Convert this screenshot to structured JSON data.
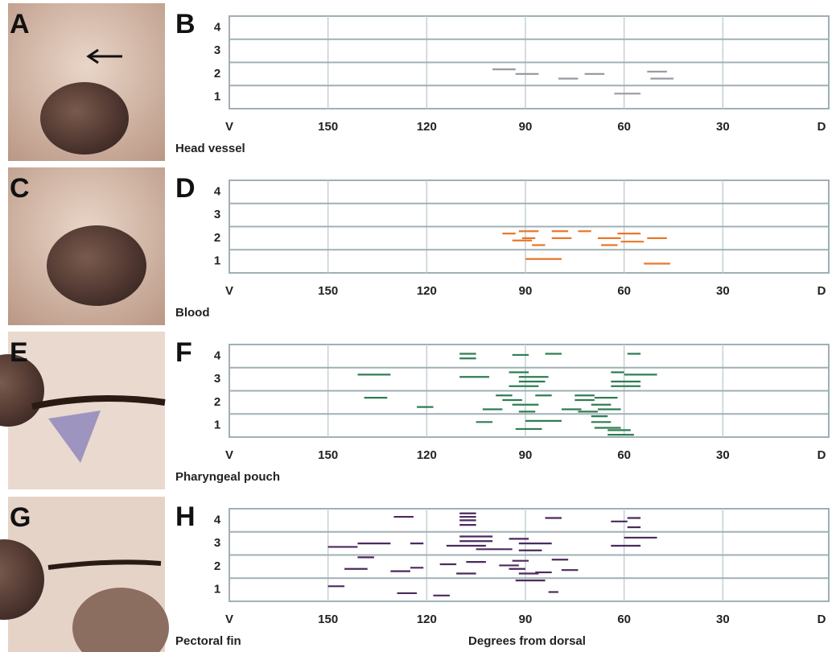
{
  "chart_data": [
    {
      "type": "segment",
      "photo_label": "A",
      "panel": "B",
      "title": "Head vessel",
      "color": "#9a9aa2",
      "x_start": [
        100,
        93,
        80,
        72,
        53,
        52,
        63
      ],
      "x_end": [
        93,
        86,
        74,
        66,
        47,
        45,
        55
      ],
      "values": [
        2.2,
        2.0,
        1.8,
        2.0,
        2.1,
        1.8,
        1.15
      ],
      "xlim": [
        180,
        0
      ],
      "xticks": [
        {
          "value": 180,
          "label": "V"
        },
        150,
        120,
        90,
        60,
        30,
        {
          "value": 0,
          "label": "D"
        }
      ],
      "ylim": [
        0.5,
        4.5
      ],
      "yticks": [
        1,
        2,
        3,
        4
      ]
    },
    {
      "type": "segment",
      "photo_label": "C",
      "panel": "D",
      "title": "Blood",
      "color": "#e8782a",
      "x_start": [
        92,
        97,
        91,
        94,
        88,
        82,
        82,
        74,
        68,
        67,
        62,
        61,
        53,
        90,
        54
      ],
      "x_end": [
        86,
        93,
        87,
        88,
        84,
        77,
        76,
        70,
        61,
        62,
        55,
        54,
        47,
        79,
        46
      ],
      "values": [
        2.3,
        2.2,
        2.0,
        1.9,
        1.7,
        2.3,
        2.0,
        2.3,
        2.0,
        1.7,
        2.2,
        1.85,
        2.0,
        1.1,
        0.9
      ],
      "xlim": [
        180,
        0
      ],
      "xticks": [
        {
          "value": 180,
          "label": "V"
        },
        150,
        120,
        90,
        60,
        30,
        {
          "value": 0,
          "label": "D"
        }
      ],
      "ylim": [
        0.5,
        4.5
      ],
      "yticks": [
        1,
        2,
        3,
        4
      ]
    },
    {
      "type": "segment",
      "photo_label": "E",
      "panel": "F",
      "title": "Pharyngeal pouch",
      "color": "#2f7d52",
      "x_start": [
        110,
        110,
        94,
        84,
        59,
        141,
        110,
        95,
        92,
        92,
        95,
        64,
        60,
        64,
        64,
        139,
        123,
        99,
        97,
        103,
        94,
        87,
        92,
        75,
        75,
        79,
        69,
        70,
        68,
        74,
        105,
        90,
        93,
        70,
        70,
        69,
        65,
        65
      ],
      "x_end": [
        105,
        105,
        89,
        79,
        55,
        131,
        101,
        89,
        83,
        84,
        86,
        60,
        50,
        55,
        55,
        132,
        118,
        94,
        91,
        97,
        86,
        82,
        87,
        69,
        69,
        73,
        62,
        64,
        61,
        68,
        100,
        79,
        85,
        65,
        64,
        61,
        58,
        57
      ],
      "values": [
        4.1,
        3.9,
        4.05,
        4.1,
        4.1,
        3.2,
        3.1,
        3.3,
        3.1,
        2.9,
        2.7,
        3.3,
        3.2,
        2.9,
        2.7,
        2.2,
        1.8,
        2.3,
        2.1,
        1.7,
        1.9,
        2.3,
        1.6,
        2.3,
        2.1,
        1.7,
        2.2,
        1.9,
        1.7,
        1.6,
        1.15,
        1.2,
        0.85,
        1.4,
        1.15,
        0.9,
        0.8,
        0.6
      ],
      "xlim": [
        180,
        0
      ],
      "xticks": [
        {
          "value": 180,
          "label": "V"
        },
        150,
        120,
        90,
        60,
        30,
        {
          "value": 0,
          "label": "D"
        }
      ],
      "ylim": [
        0.5,
        4.5
      ],
      "yticks": [
        1,
        2,
        3,
        4
      ]
    },
    {
      "type": "segment",
      "photo_label": "G",
      "panel": "H",
      "title": "Pectoral fin",
      "x_label": "Degrees from dorsal",
      "color": "#4b2a5e",
      "x_start": [
        130,
        110,
        110,
        110,
        110,
        84,
        64,
        59,
        59,
        110,
        110,
        95,
        141,
        150,
        125,
        114,
        92,
        105,
        92,
        60,
        64,
        141,
        145,
        131,
        125,
        116,
        108,
        111,
        94,
        98,
        95,
        92,
        87,
        82,
        79,
        150,
        93,
        129,
        118,
        83
      ],
      "x_end": [
        124,
        105,
        105,
        105,
        105,
        79,
        59,
        55,
        55,
        100,
        100,
        89,
        131,
        141,
        121,
        102,
        82,
        94,
        85,
        50,
        55,
        136,
        138,
        125,
        121,
        111,
        102,
        105,
        89,
        92,
        90,
        86,
        82,
        77,
        74,
        145,
        84,
        123,
        113,
        80
      ],
      "values": [
        4.15,
        4.3,
        4.15,
        4.0,
        3.8,
        4.1,
        3.95,
        4.1,
        3.7,
        3.3,
        3.1,
        3.2,
        3.0,
        2.85,
        3.0,
        2.9,
        3.0,
        2.75,
        2.7,
        3.25,
        2.9,
        2.4,
        1.9,
        1.8,
        1.95,
        2.1,
        2.2,
        1.7,
        2.25,
        2.05,
        1.9,
        1.7,
        1.75,
        2.3,
        1.85,
        1.15,
        1.4,
        0.85,
        0.75,
        0.9
      ],
      "xlim": [
        180,
        0
      ],
      "xticks": [
        {
          "value": 180,
          "label": "V"
        },
        150,
        120,
        90,
        60,
        30,
        {
          "value": 0,
          "label": "D"
        }
      ],
      "ylim": [
        0.5,
        4.5
      ],
      "yticks": [
        1,
        2,
        3,
        4
      ]
    }
  ]
}
